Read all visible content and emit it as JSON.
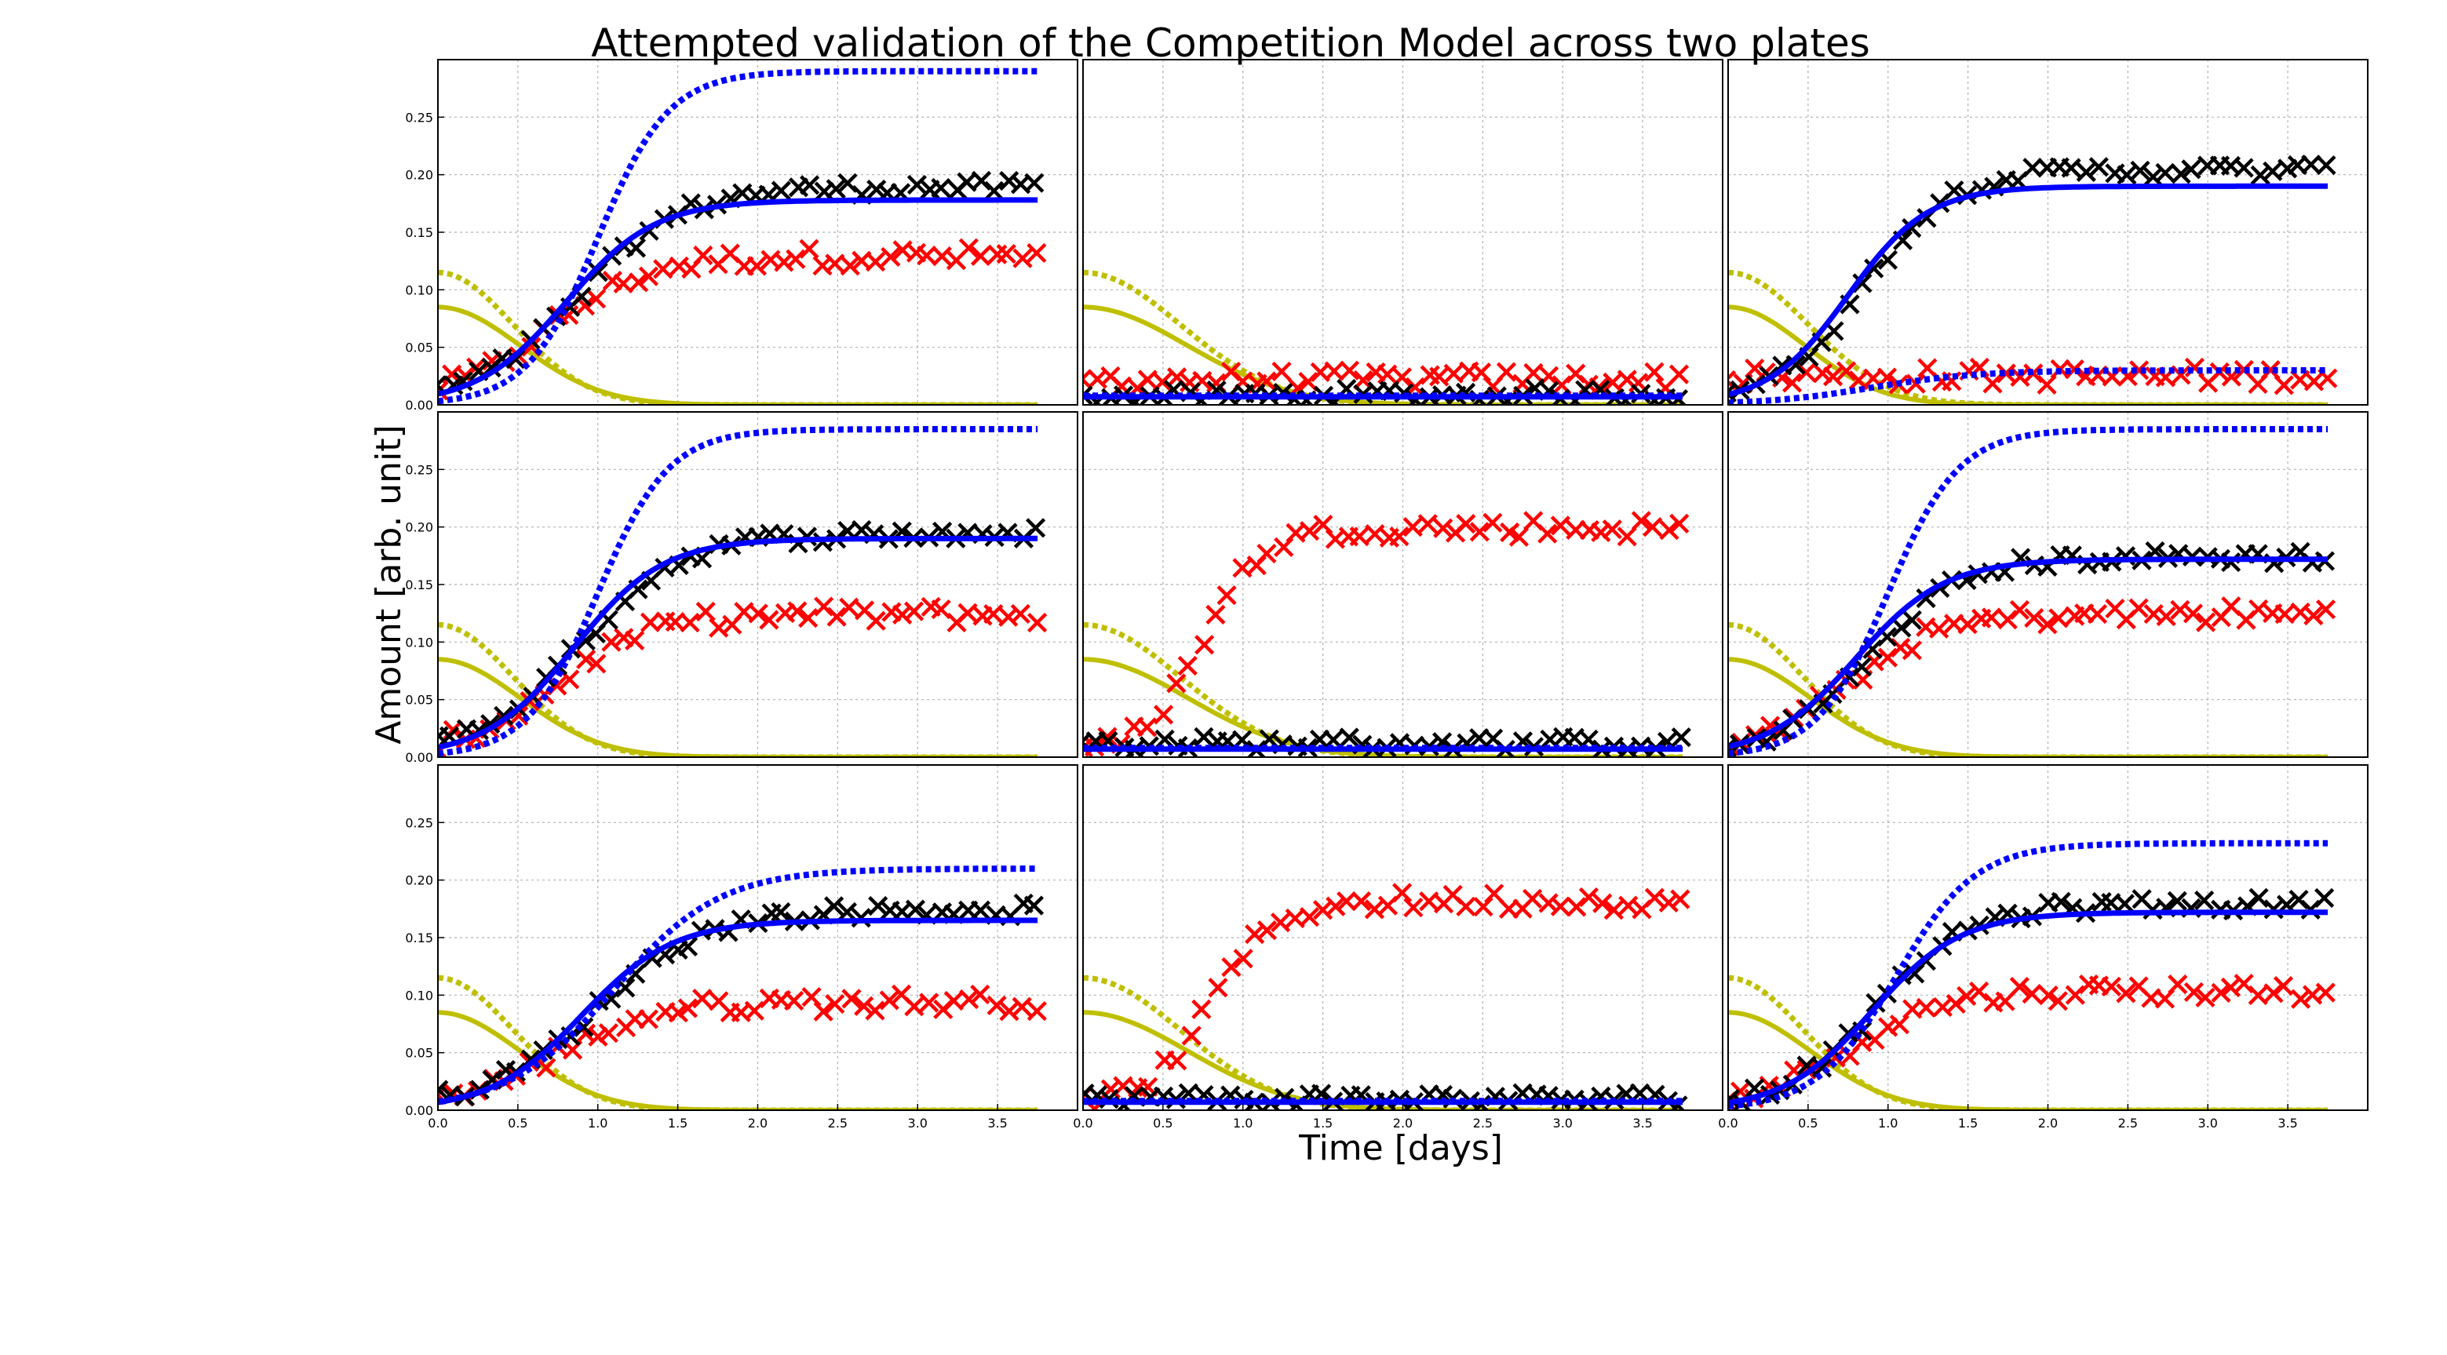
{
  "chart_data": {
    "type": "scatter",
    "title": "Attempted validation of the Competition Model across two plates",
    "xlabel": "Time [days]",
    "ylabel": "Amount [arb. unit]",
    "grid": true,
    "layout": {
      "rows": 3,
      "cols": 3
    },
    "xlim": [
      0,
      4.0
    ],
    "ylim": [
      0,
      0.3
    ],
    "xticks": [
      0.0,
      0.5,
      1.0,
      1.5,
      2.0,
      2.5,
      3.0,
      3.5
    ],
    "xtick_labels": [
      "0.0",
      "0.5",
      "1.0",
      "1.5",
      "2.0",
      "2.5",
      "3.0",
      "3.5"
    ],
    "yticks": [
      0.0,
      0.05,
      0.1,
      0.15,
      0.2,
      0.25
    ],
    "ytick_labels": [
      "0.00",
      "0.05",
      "0.10",
      "0.15",
      "0.20",
      "0.25"
    ],
    "colors": {
      "black": "#000000",
      "red": "#ff0000",
      "blue": "#0000ff",
      "olive": "#bfbf00"
    },
    "panels": [
      {
        "black_obs": {
          "L": 0.185,
          "r": 3.2,
          "t0": 0.9
        },
        "red_obs": {
          "L": 0.125,
          "r": 3.3,
          "t0": 0.7
        },
        "blue_fit": {
          "L": 0.178,
          "r": 3.6,
          "t0": 0.8
        },
        "blue_dotted": {
          "L": 0.29,
          "r": 4.5,
          "t0": 1.0
        },
        "olive_fit": {
          "A": 0.085,
          "k": 2.1
        },
        "olive_dotted": {
          "A": 0.115,
          "k": 2.5
        }
      },
      {
        "black_obs": {
          "L": 0.005,
          "r": 1.0,
          "t0": 0.0,
          "base": 0.01
        },
        "red_obs": {
          "L": 0.0,
          "r": 1.0,
          "t0": 0.0,
          "base": 0.022
        },
        "blue_fit": {
          "L": 0.0,
          "r": 1.0,
          "t0": 0.0,
          "base": 0.007
        },
        "blue_dotted": {
          "L": 0.0,
          "r": 1.0,
          "t0": 0.0,
          "base": 0.008
        },
        "olive_fit": {
          "A": 0.085,
          "k": 1.3
        },
        "olive_dotted": {
          "A": 0.115,
          "k": 1.5
        }
      },
      {
        "black_obs": {
          "L": 0.2,
          "r": 3.8,
          "t0": 0.85
        },
        "red_obs": {
          "L": 0.0,
          "r": 1.0,
          "t0": 0.0,
          "base": 0.025
        },
        "blue_fit": {
          "L": 0.19,
          "r": 4.0,
          "t0": 0.75
        },
        "blue_dotted": {
          "L": 0.03,
          "r": 3.0,
          "t0": 0.9
        },
        "olive_fit": {
          "A": 0.085,
          "k": 2.4
        },
        "olive_dotted": {
          "A": 0.115,
          "k": 2.2
        }
      },
      {
        "black_obs": {
          "L": 0.19,
          "r": 3.2,
          "t0": 0.9
        },
        "red_obs": {
          "L": 0.12,
          "r": 3.4,
          "t0": 0.75
        },
        "blue_fit": {
          "L": 0.19,
          "r": 3.6,
          "t0": 0.85
        },
        "blue_dotted": {
          "L": 0.285,
          "r": 4.5,
          "t0": 1.0
        },
        "olive_fit": {
          "A": 0.085,
          "k": 2.1
        },
        "olive_dotted": {
          "A": 0.115,
          "k": 2.5
        }
      },
      {
        "black_obs": {
          "L": 0.0,
          "r": 1.0,
          "t0": 0.0,
          "base": 0.012
        },
        "red_obs": {
          "L": 0.195,
          "r": 5.5,
          "t0": 0.75
        },
        "blue_fit": {
          "L": 0.0,
          "r": 1.0,
          "t0": 0.0,
          "base": 0.007
        },
        "blue_dotted": {
          "L": 0.0,
          "r": 1.0,
          "t0": 0.0,
          "base": 0.008
        },
        "olive_fit": {
          "A": 0.085,
          "k": 1.3
        },
        "olive_dotted": {
          "A": 0.115,
          "k": 1.5
        }
      },
      {
        "black_obs": {
          "L": 0.17,
          "r": 3.5,
          "t0": 0.9
        },
        "red_obs": {
          "L": 0.12,
          "r": 3.5,
          "t0": 0.75
        },
        "blue_fit": {
          "L": 0.172,
          "r": 3.6,
          "t0": 0.8
        },
        "blue_dotted": {
          "L": 0.285,
          "r": 4.5,
          "t0": 1.0
        },
        "olive_fit": {
          "A": 0.085,
          "k": 2.1
        },
        "olive_dotted": {
          "A": 0.115,
          "k": 2.5
        }
      },
      {
        "black_obs": {
          "L": 0.17,
          "r": 3.0,
          "t0": 1.0
        },
        "red_obs": {
          "L": 0.09,
          "r": 3.3,
          "t0": 0.75
        },
        "blue_fit": {
          "L": 0.165,
          "r": 3.5,
          "t0": 0.9
        },
        "blue_dotted": {
          "L": 0.21,
          "r": 3.0,
          "t0": 1.1
        },
        "olive_fit": {
          "A": 0.085,
          "k": 2.1
        },
        "olive_dotted": {
          "A": 0.115,
          "k": 2.5
        }
      },
      {
        "black_obs": {
          "L": 0.0,
          "r": 1.0,
          "t0": 0.0,
          "base": 0.01
        },
        "red_obs": {
          "L": 0.178,
          "r": 5.0,
          "t0": 0.8
        },
        "blue_fit": {
          "L": 0.0,
          "r": 1.0,
          "t0": 0.0,
          "base": 0.007
        },
        "blue_dotted": {
          "L": 0.0,
          "r": 1.0,
          "t0": 0.0,
          "base": 0.008
        },
        "olive_fit": {
          "A": 0.085,
          "k": 1.3
        },
        "olive_dotted": {
          "A": 0.115,
          "k": 1.5
        }
      },
      {
        "black_obs": {
          "L": 0.175,
          "r": 3.5,
          "t0": 0.95
        },
        "red_obs": {
          "L": 0.1,
          "r": 3.4,
          "t0": 0.75
        },
        "blue_fit": {
          "L": 0.172,
          "r": 3.6,
          "t0": 0.9
        },
        "blue_dotted": {
          "L": 0.232,
          "r": 4.0,
          "t0": 1.05
        },
        "olive_fit": {
          "A": 0.085,
          "k": 2.1
        },
        "olive_dotted": {
          "A": 0.115,
          "k": 2.5
        }
      }
    ]
  }
}
